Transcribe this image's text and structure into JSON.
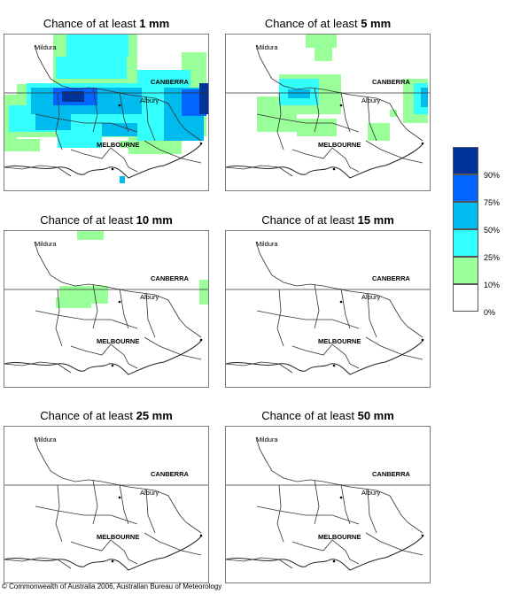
{
  "panels": [
    {
      "title_prefix": "Chance of at least ",
      "amount": "1 mm"
    },
    {
      "title_prefix": "Chance of at least ",
      "amount": "5 mm"
    },
    {
      "title_prefix": "Chance of at least ",
      "amount": "10 mm"
    },
    {
      "title_prefix": "Chance of at least ",
      "amount": "15 mm"
    },
    {
      "title_prefix": "Chance of at least ",
      "amount": "25 mm"
    },
    {
      "title_prefix": "Chance of at least ",
      "amount": "50 mm"
    }
  ],
  "places": {
    "mildura": "Mildura",
    "canberra": "CANBERRA",
    "albury": "Albury",
    "melbourne": "MELBOURNE"
  },
  "legend": {
    "bands": [
      {
        "color": "#003399",
        "label": ""
      },
      {
        "color": "#0066ff",
        "label": "90%"
      },
      {
        "color": "#00bbee",
        "label": "75%"
      },
      {
        "color": "#33ffff",
        "label": "50%"
      },
      {
        "color": "#99ff99",
        "label": "25%"
      },
      {
        "color": "#ffffff",
        "label": "10%"
      },
      {
        "color": "",
        "label": "0%"
      }
    ]
  },
  "copyright": "© Commonwealth of Australia 2006, Australian Bureau of Meteorology"
}
